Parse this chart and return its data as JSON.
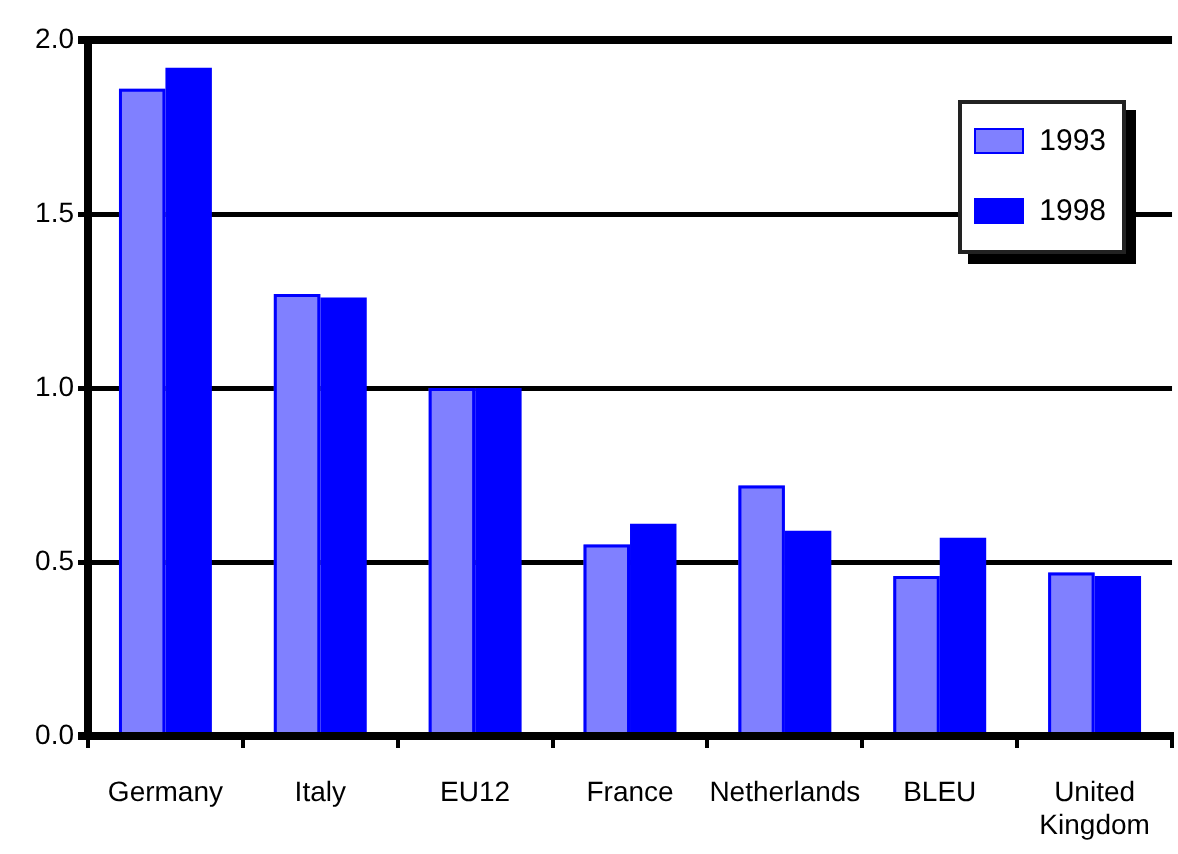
{
  "chart_data": {
    "type": "bar",
    "categories": [
      "Germany",
      "Italy",
      "EU12",
      "France",
      "Netherlands",
      "BLEU",
      "United Kingdom"
    ],
    "series": [
      {
        "name": "1993",
        "color": "#8080ff",
        "values": [
          1.86,
          1.27,
          1.0,
          0.55,
          0.72,
          0.46,
          0.47
        ]
      },
      {
        "name": "1998",
        "color": "#0000ff",
        "values": [
          1.92,
          1.26,
          1.0,
          0.61,
          0.59,
          0.57,
          0.46
        ]
      }
    ],
    "ylim": [
      0,
      2
    ],
    "yticks": [
      {
        "value": 0,
        "label": "0.0"
      },
      0.5,
      {
        "value": 1,
        "label": "1.0"
      },
      1.5,
      {
        "value": 2,
        "label": "2.0"
      }
    ],
    "grid": "y",
    "legend": "top right"
  }
}
